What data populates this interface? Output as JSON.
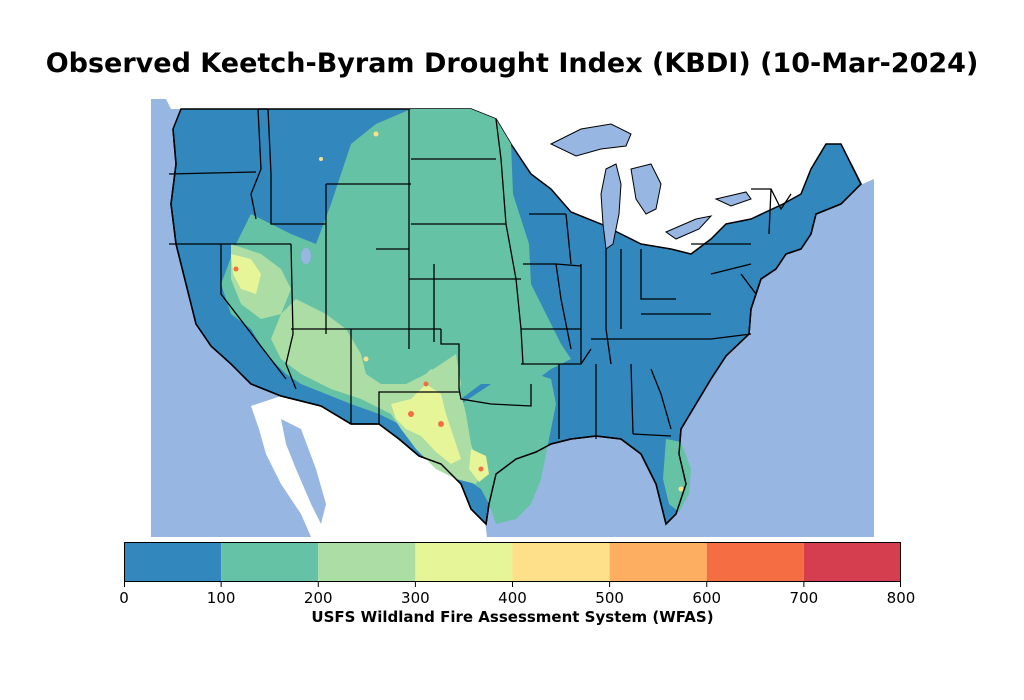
{
  "title": "Observed Keetch-Byram Drought Index (KBDI) (10-Mar-2024)",
  "colorbar": {
    "label": "USFS Wildland Fire Assessment System (WFAS)",
    "ticks": [
      "0",
      "100",
      "200",
      "300",
      "400",
      "500",
      "600",
      "700",
      "800"
    ],
    "bins": [
      {
        "min": 0,
        "max": 100,
        "color": "#3288bd"
      },
      {
        "min": 100,
        "max": 200,
        "color": "#66c2a5"
      },
      {
        "min": 200,
        "max": 300,
        "color": "#abdda4"
      },
      {
        "min": 300,
        "max": 400,
        "color": "#e6f598"
      },
      {
        "min": 400,
        "max": 500,
        "color": "#fee08b"
      },
      {
        "min": 500,
        "max": 600,
        "color": "#fdae61"
      },
      {
        "min": 600,
        "max": 700,
        "color": "#f46d43"
      },
      {
        "min": 700,
        "max": 800,
        "color": "#d53e4f"
      }
    ]
  },
  "colors": {
    "ocean": "#97b6e1",
    "land_foreign": "#ffffff",
    "border": "#000000"
  }
}
